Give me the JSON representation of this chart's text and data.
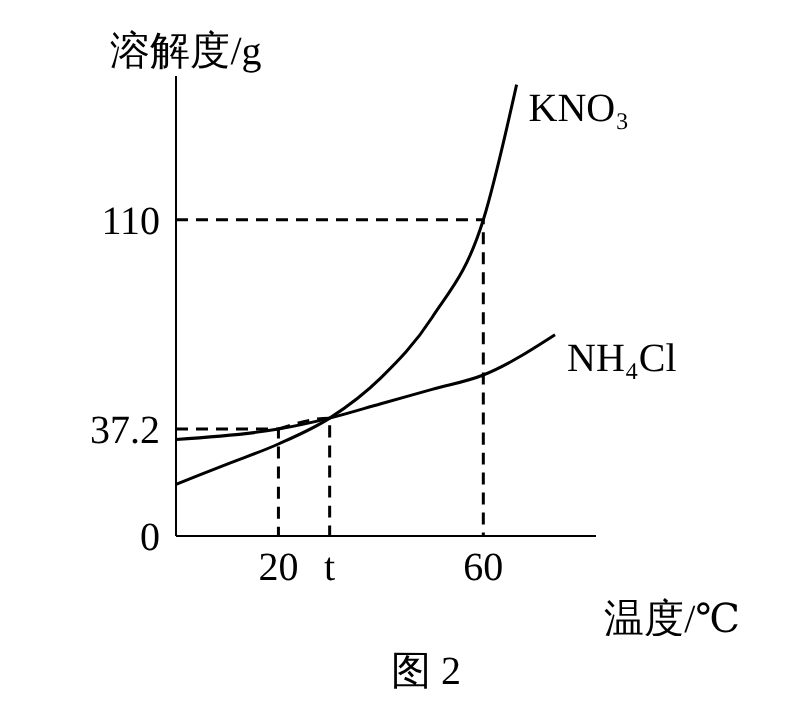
{
  "chart_data": {
    "type": "line",
    "xlabel": "温度/℃",
    "ylabel": "溶解度/g",
    "annotations": [
      "图 2"
    ],
    "xlim": [
      0,
      82
    ],
    "ylim": [
      0,
      160
    ],
    "xticks": [
      20,
      {
        "value": 30,
        "label": "t"
      },
      60
    ],
    "yticks": [
      0,
      37.2,
      110
    ],
    "marker": "none",
    "series": [
      {
        "name": "KNO₃",
        "color": "#000000",
        "x": [
          0,
          10,
          20,
          30,
          40,
          50,
          60,
          66.5
        ],
        "values": [
          18,
          25,
          32,
          41,
          55,
          76,
          110,
          157
        ]
      },
      {
        "name": "NH₄Cl",
        "color": "#000000",
        "x": [
          0,
          20,
          30,
          40,
          50,
          60,
          74
        ],
        "values": [
          33.6,
          37.2,
          41,
          46,
          51,
          56,
          70
        ]
      },
      {
        "color": "#000000",
        "line_style": "dashed",
        "x": [
          0,
          20,
          20
        ],
        "values": [
          37.2,
          37.2,
          0
        ]
      },
      {
        "color": "#000000",
        "line_style": "dashed",
        "x": [
          20,
          30,
          30
        ],
        "values": [
          37.2,
          41,
          0
        ]
      },
      {
        "color": "#000000",
        "line_style": "dashed",
        "x": [
          0,
          60,
          60
        ],
        "values": [
          110,
          110,
          0
        ]
      }
    ]
  }
}
